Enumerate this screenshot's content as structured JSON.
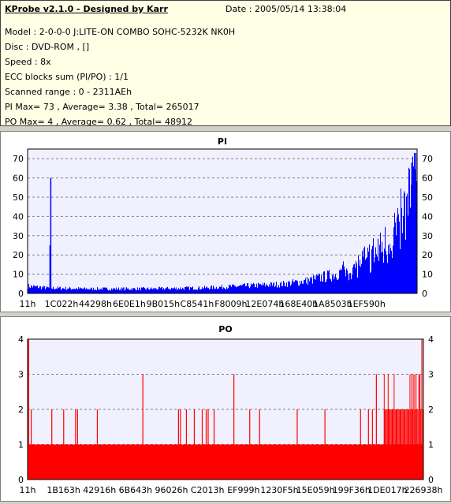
{
  "info": {
    "title": "KProbe v2.1.0 - Designed by Karr",
    "date": "Date : 2005/05/14 13:38:04",
    "lines": [
      "Model : 2-0-0-0 J:LITE-ON COMBO SOHC-5232K NK0H",
      "Disc : DVD-ROM ,  []",
      "Speed : 8x",
      "ECC blocks sum (PI/PO) : 1/1",
      "Scanned range : 0 - 2311AEh",
      "PI Max= 73 , Average= 3.38 , Total= 265017",
      "PO Max= 4 , Average= 0.62 , Total= 48912"
    ]
  },
  "chart_data": [
    {
      "type": "bar",
      "title": "PI",
      "ylim": [
        0,
        75
      ],
      "yticks": [
        0,
        10,
        20,
        30,
        40,
        50,
        60,
        70
      ],
      "xticks": [
        "11h",
        "1C022h",
        "44298h",
        "6E0E1h",
        "9B015h",
        "C8541h",
        "F8009h",
        "12E074h",
        "168E40h",
        "1A8503h",
        "1EF590h"
      ],
      "x_range_label": "0 - 2311AEh",
      "grid": true,
      "color": "#0000ff",
      "baseline_series": [
        [
          0,
          4
        ],
        [
          0.05,
          3
        ],
        [
          0.15,
          2.5
        ],
        [
          0.3,
          2.5
        ],
        [
          0.45,
          3
        ],
        [
          0.55,
          4
        ],
        [
          0.65,
          5
        ],
        [
          0.72,
          7
        ],
        [
          0.78,
          10
        ],
        [
          0.83,
          14
        ],
        [
          0.88,
          20
        ],
        [
          0.92,
          28
        ],
        [
          0.95,
          36
        ],
        [
          0.97,
          45
        ],
        [
          0.99,
          58
        ],
        [
          1.0,
          70
        ]
      ],
      "spikes": [
        [
          0.058,
          60
        ],
        [
          0.056,
          25
        ],
        [
          0.995,
          73
        ],
        [
          0.985,
          68
        ]
      ]
    },
    {
      "type": "bar",
      "title": "PO",
      "ylim": [
        0,
        4
      ],
      "yticks": [
        0,
        1,
        2,
        3,
        4
      ],
      "xticks": [
        "11h",
        "1B163h",
        "42916h",
        "6B643h",
        "96026h",
        "C2013h",
        "EF999h",
        "1230F5h",
        "15E059h",
        "199F36h",
        "1DE017h",
        "226938h"
      ],
      "grid": true,
      "color": "#ff0000",
      "baseline": 1,
      "spikes_2": [
        0.008,
        0.06,
        0.09,
        0.12,
        0.125,
        0.175,
        0.38,
        0.385,
        0.4,
        0.42,
        0.44,
        0.45,
        0.455,
        0.47,
        0.56,
        0.585,
        0.68,
        0.75,
        0.84,
        0.86,
        0.87,
        0.9,
        0.91,
        0.92,
        0.93,
        0.94,
        0.95,
        0.96,
        0.965,
        0.97,
        0.975
      ],
      "spikes_3": [
        0.29,
        0.52,
        0.88,
        0.97,
        0.975,
        0.98,
        0.99
      ],
      "spikes_4": [
        0.995
      ]
    }
  ]
}
